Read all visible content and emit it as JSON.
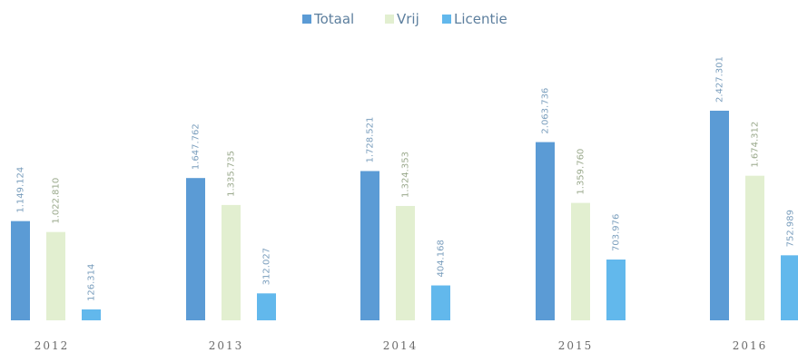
{
  "chart_data": {
    "type": "bar",
    "title": "",
    "xlabel": "",
    "ylabel": "",
    "categories": [
      "2012",
      "2013",
      "2014",
      "2015",
      "2016"
    ],
    "series": [
      {
        "name": "Totaal",
        "color": "#5b9bd5",
        "values": [
          1149124,
          1647762,
          1728521,
          2063736,
          2427301
        ],
        "labels": [
          "1.149.124",
          "1.647.762",
          "1.728.521",
          "2.063.736",
          "2.427.301"
        ]
      },
      {
        "name": "Vrij",
        "color": "#e2efd0",
        "values": [
          1022810,
          1335735,
          1324353,
          1359760,
          1674312
        ],
        "labels": [
          "1.022.810",
          "1.335.735",
          "1.324.353",
          "1.359.760",
          "1.674.312"
        ]
      },
      {
        "name": "Licentie",
        "color": "#62b8ec",
        "values": [
          126314,
          312027,
          404168,
          703976,
          752989
        ],
        "labels": [
          "126.314",
          "312.027",
          "404.168",
          "703.976",
          "752.989"
        ]
      }
    ],
    "ylim": [
      0,
      2427301
    ],
    "grid": false,
    "legend_position": "top-center"
  }
}
